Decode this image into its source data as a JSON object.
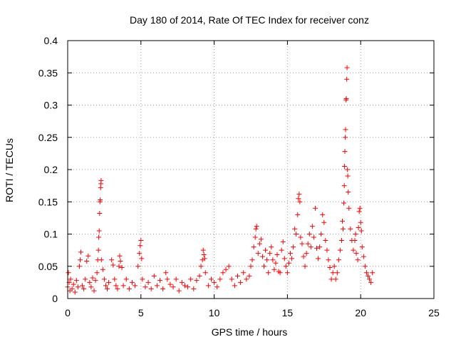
{
  "chart_data": {
    "type": "scatter",
    "title": "Day 180 of 2014, Rate Of TEC Index for receiver conz",
    "xlabel": "GPS time / hours",
    "ylabel": "ROTI / TECUs",
    "xlim": [
      0,
      25
    ],
    "ylim": [
      0,
      0.4
    ],
    "x_ticks": [
      0,
      5,
      10,
      15,
      20,
      25
    ],
    "x_tick_labels": [
      "0",
      "5",
      "10",
      "15",
      "20",
      "25"
    ],
    "y_ticks": [
      0,
      0.05,
      0.1,
      0.15,
      0.2,
      0.25,
      0.3,
      0.35,
      0.4
    ],
    "y_tick_labels": [
      "0",
      "0.05",
      "0.1",
      "0.15",
      "0.2",
      "0.25",
      "0.3",
      "0.35",
      "0.4"
    ],
    "grid": true,
    "marker": "+",
    "color": "#ff0000",
    "series": [
      {
        "points": [
          [
            0.0,
            0.018
          ],
          [
            0.05,
            0.04
          ],
          [
            0.1,
            0.025
          ],
          [
            0.15,
            0.012
          ],
          [
            0.2,
            0.03
          ],
          [
            0.3,
            0.015
          ],
          [
            0.4,
            0.022
          ],
          [
            0.5,
            0.01
          ],
          [
            0.6,
            0.028
          ],
          [
            0.7,
            0.018
          ],
          [
            0.8,
            0.05
          ],
          [
            0.85,
            0.06
          ],
          [
            0.9,
            0.072
          ],
          [
            1.0,
            0.02
          ],
          [
            1.1,
            0.015
          ],
          [
            1.2,
            0.03
          ],
          [
            1.3,
            0.058
          ],
          [
            1.4,
            0.066
          ],
          [
            1.5,
            0.025
          ],
          [
            1.6,
            0.018
          ],
          [
            1.7,
            0.032
          ],
          [
            1.8,
            0.012
          ],
          [
            1.9,
            0.028
          ],
          [
            2.0,
            0.04
          ],
          [
            2.05,
            0.06
          ],
          [
            2.1,
            0.075
          ],
          [
            2.12,
            0.095
          ],
          [
            2.15,
            0.105
          ],
          [
            2.18,
            0.132
          ],
          [
            2.2,
            0.15
          ],
          [
            2.22,
            0.153
          ],
          [
            2.25,
            0.172
          ],
          [
            2.27,
            0.178
          ],
          [
            2.28,
            0.183
          ],
          [
            2.3,
            0.06
          ],
          [
            2.4,
            0.045
          ],
          [
            2.5,
            0.03
          ],
          [
            2.6,
            0.02
          ],
          [
            2.7,
            0.015
          ],
          [
            2.8,
            0.025
          ],
          [
            3.0,
            0.06
          ],
          [
            3.1,
            0.052
          ],
          [
            3.2,
            0.03
          ],
          [
            3.3,
            0.02
          ],
          [
            3.4,
            0.015
          ],
          [
            3.5,
            0.05
          ],
          [
            3.55,
            0.066
          ],
          [
            3.6,
            0.058
          ],
          [
            3.7,
            0.048
          ],
          [
            3.8,
            0.02
          ],
          [
            4.0,
            0.03
          ],
          [
            4.2,
            0.015
          ],
          [
            4.4,
            0.025
          ],
          [
            4.6,
            0.02
          ],
          [
            4.8,
            0.05
          ],
          [
            4.9,
            0.07
          ],
          [
            4.95,
            0.082
          ],
          [
            5.0,
            0.09
          ],
          [
            5.05,
            0.062
          ],
          [
            5.1,
            0.03
          ],
          [
            5.3,
            0.018
          ],
          [
            5.5,
            0.025
          ],
          [
            5.7,
            0.015
          ],
          [
            5.9,
            0.035
          ],
          [
            6.1,
            0.02
          ],
          [
            6.3,
            0.028
          ],
          [
            6.5,
            0.015
          ],
          [
            6.7,
            0.04
          ],
          [
            6.8,
            0.03
          ],
          [
            7.0,
            0.022
          ],
          [
            7.2,
            0.018
          ],
          [
            7.4,
            0.03
          ],
          [
            7.6,
            0.012
          ],
          [
            7.8,
            0.025
          ],
          [
            8.0,
            0.02
          ],
          [
            8.2,
            0.018
          ],
          [
            8.4,
            0.03
          ],
          [
            8.6,
            0.015
          ],
          [
            8.8,
            0.028
          ],
          [
            9.0,
            0.035
          ],
          [
            9.1,
            0.05
          ],
          [
            9.2,
            0.06
          ],
          [
            9.25,
            0.075
          ],
          [
            9.3,
            0.068
          ],
          [
            9.35,
            0.062
          ],
          [
            9.4,
            0.04
          ],
          [
            9.6,
            0.02
          ],
          [
            9.8,
            0.03
          ],
          [
            10.0,
            0.025
          ],
          [
            10.2,
            0.018
          ],
          [
            10.4,
            0.03
          ],
          [
            10.6,
            0.04
          ],
          [
            10.8,
            0.045
          ],
          [
            11.0,
            0.05
          ],
          [
            11.2,
            0.03
          ],
          [
            11.4,
            0.02
          ],
          [
            11.6,
            0.035
          ],
          [
            11.8,
            0.025
          ],
          [
            12.0,
            0.04
          ],
          [
            12.2,
            0.03
          ],
          [
            12.4,
            0.035
          ],
          [
            12.5,
            0.05
          ],
          [
            12.6,
            0.06
          ],
          [
            12.7,
            0.08
          ],
          [
            12.8,
            0.095
          ],
          [
            12.85,
            0.108
          ],
          [
            12.9,
            0.112
          ],
          [
            13.0,
            0.07
          ],
          [
            13.1,
            0.085
          ],
          [
            13.2,
            0.092
          ],
          [
            13.3,
            0.065
          ],
          [
            13.4,
            0.05
          ],
          [
            13.5,
            0.075
          ],
          [
            13.6,
            0.06
          ],
          [
            13.7,
            0.04
          ],
          [
            13.8,
            0.07
          ],
          [
            13.9,
            0.08
          ],
          [
            14.0,
            0.06
          ],
          [
            14.1,
            0.045
          ],
          [
            14.2,
            0.055
          ],
          [
            14.3,
            0.068
          ],
          [
            14.4,
            0.042
          ],
          [
            14.5,
            0.04
          ],
          [
            14.6,
            0.075
          ],
          [
            14.7,
            0.088
          ],
          [
            14.8,
            0.062
          ],
          [
            14.9,
            0.05
          ],
          [
            15.0,
            0.04
          ],
          [
            15.1,
            0.055
          ],
          [
            15.2,
            0.07
          ],
          [
            15.3,
            0.062
          ],
          [
            15.4,
            0.08
          ],
          [
            15.5,
            0.108
          ],
          [
            15.6,
            0.1
          ],
          [
            15.7,
            0.13
          ],
          [
            15.75,
            0.155
          ],
          [
            15.8,
            0.162
          ],
          [
            15.85,
            0.15
          ],
          [
            15.9,
            0.095
          ],
          [
            16.0,
            0.085
          ],
          [
            16.1,
            0.065
          ],
          [
            16.2,
            0.05
          ],
          [
            16.3,
            0.07
          ],
          [
            16.4,
            0.085
          ],
          [
            16.5,
            0.1
          ],
          [
            16.6,
            0.08
          ],
          [
            16.7,
            0.112
          ],
          [
            16.8,
            0.095
          ],
          [
            16.9,
            0.14
          ],
          [
            17.0,
            0.078
          ],
          [
            17.1,
            0.062
          ],
          [
            17.2,
            0.08
          ],
          [
            17.3,
            0.1
          ],
          [
            17.4,
            0.13
          ],
          [
            17.5,
            0.118
          ],
          [
            17.6,
            0.09
          ],
          [
            17.7,
            0.075
          ],
          [
            17.8,
            0.06
          ],
          [
            17.9,
            0.048
          ],
          [
            18.0,
            0.03
          ],
          [
            18.1,
            0.04
          ],
          [
            18.2,
            0.05
          ],
          [
            18.3,
            0.03
          ],
          [
            18.4,
            0.04
          ],
          [
            18.5,
            0.06
          ],
          [
            18.6,
            0.075
          ],
          [
            18.7,
            0.09
          ],
          [
            18.75,
            0.12
          ],
          [
            18.8,
            0.108
          ],
          [
            18.85,
            0.148
          ],
          [
            18.88,
            0.175
          ],
          [
            18.9,
            0.205
          ],
          [
            18.92,
            0.228
          ],
          [
            18.95,
            0.25
          ],
          [
            18.97,
            0.262
          ],
          [
            19.0,
            0.308
          ],
          [
            19.02,
            0.31
          ],
          [
            19.05,
            0.34
          ],
          [
            19.07,
            0.358
          ],
          [
            19.1,
            0.2
          ],
          [
            19.12,
            0.19
          ],
          [
            19.15,
            0.165
          ],
          [
            19.2,
            0.14
          ],
          [
            19.3,
            0.108
          ],
          [
            19.4,
            0.09
          ],
          [
            19.5,
            0.075
          ],
          [
            19.6,
            0.09
          ],
          [
            19.65,
            0.1
          ],
          [
            19.7,
            0.07
          ],
          [
            19.8,
            0.06
          ],
          [
            19.85,
            0.11
          ],
          [
            19.9,
            0.135
          ],
          [
            19.95,
            0.14
          ],
          [
            20.0,
            0.118
          ],
          [
            20.05,
            0.105
          ],
          [
            20.1,
            0.08
          ],
          [
            20.2,
            0.065
          ],
          [
            20.3,
            0.05
          ],
          [
            20.4,
            0.04
          ],
          [
            20.5,
            0.035
          ],
          [
            20.6,
            0.03
          ],
          [
            20.7,
            0.025
          ],
          [
            20.8,
            0.04
          ]
        ]
      }
    ]
  }
}
